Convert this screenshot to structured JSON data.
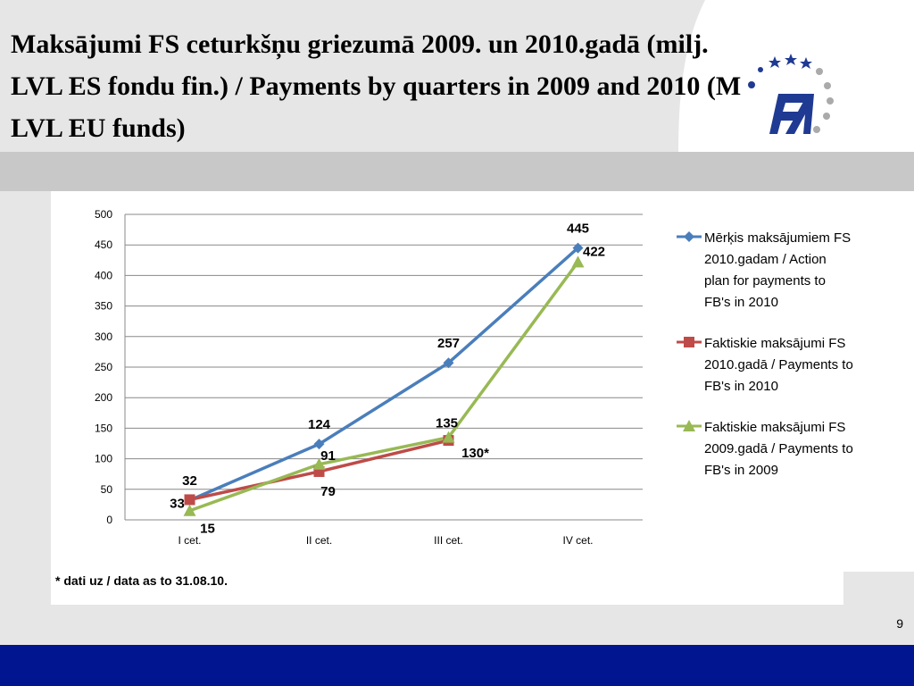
{
  "header": {
    "title": "Maksājumi FS ceturkšņu griezumā 2009. un 2010.gadā (milj. LVL ES fondu fin.) / Payments by quarters in 2009 and 2010 (M LVL EU funds)"
  },
  "chart_data": {
    "type": "line",
    "categories": [
      "I cet.",
      "II cet.",
      "III cet.",
      "IV cet."
    ],
    "series": [
      {
        "name": "Mērķis maksājumiem FS 2010.gadam / Action plan for payments to FB's in 2010",
        "color": "#4a7ebb",
        "marker": "diamond",
        "values": [
          32,
          124,
          257,
          445
        ]
      },
      {
        "name": "Faktiskie maksājumi FS 2010.gadā / Payments to FB's in 2010",
        "color": "#be4b48",
        "marker": "square",
        "values": [
          33,
          79,
          130,
          null
        ],
        "value_labels": [
          "33",
          "79",
          "130*",
          null
        ]
      },
      {
        "name": "Faktiskie maksājumi FS 2009.gadā / Payments to FB's in 2009",
        "color": "#98b954",
        "marker": "triangle",
        "values": [
          15,
          91,
          135,
          422
        ]
      }
    ],
    "ylim": [
      0,
      500
    ],
    "yticks": [
      0,
      50,
      100,
      150,
      200,
      250,
      300,
      350,
      400,
      450,
      500
    ],
    "grid": true,
    "legend": "right"
  },
  "footnote": "* dati uz / data as to 31.08.10.",
  "page_number": "9"
}
